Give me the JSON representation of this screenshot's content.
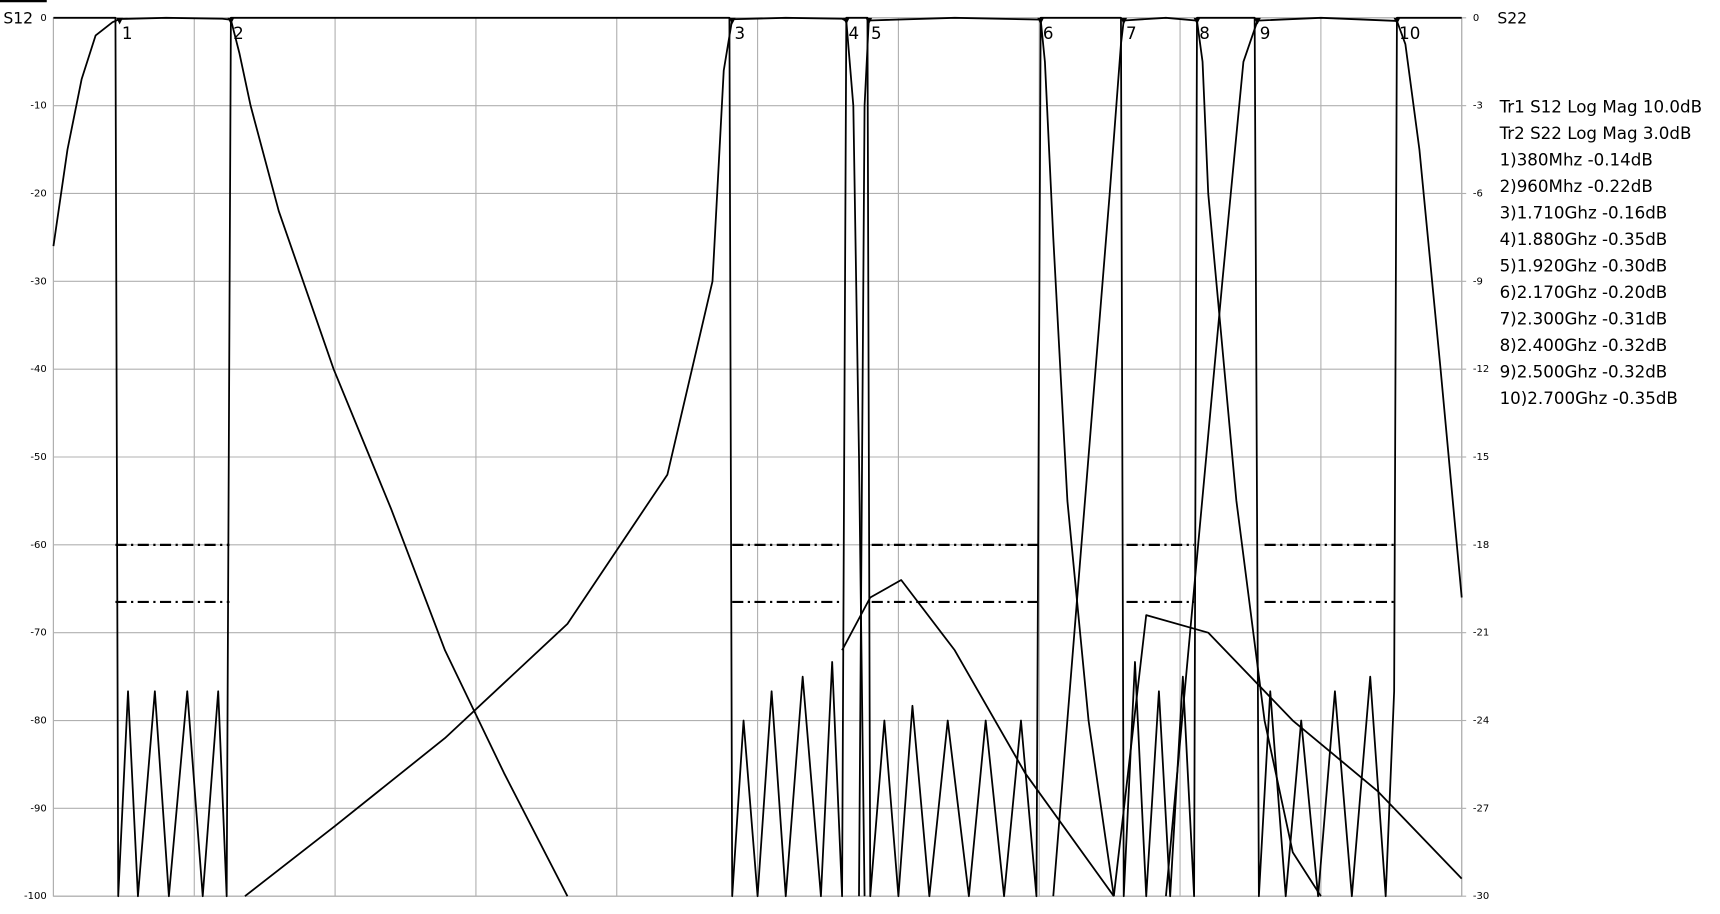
{
  "chart_data": {
    "type": "line",
    "y_label": "S12",
    "y2_label": "S22",
    "annotations": [
      "Tr1 S12 Log Mag 10.0dB",
      "Tr2 S22 Log Mag 3.0dB",
      "1)380Mhz -0.14dB",
      "2)960Mhz -0.22dB",
      "3)1.710Ghz -0.16dB",
      "4)1.880Ghz -0.35dB",
      "5)1.920Ghz -0.30dB",
      "6)2.170Ghz -0.20dB",
      "7)2.300Ghz -0.31dB",
      "8)2.400Ghz -0.32dB",
      "9)2.500Ghz -0.32dB",
      "10)2.700Ghz -0.35dB"
    ],
    "markers": [
      {
        "label": "1",
        "x": 0.47
      },
      {
        "label": "2",
        "x": 1.26
      },
      {
        "label": "3",
        "x": 4.82
      },
      {
        "label": "4",
        "x": 5.63
      },
      {
        "label": "5",
        "x": 5.79
      },
      {
        "label": "6",
        "x": 7.01
      },
      {
        "label": "7",
        "x": 7.6
      },
      {
        "label": "8",
        "x": 8.12
      },
      {
        "label": "9",
        "x": 8.55
      },
      {
        "label": "10",
        "x": 9.54
      }
    ],
    "xlim": [
      0,
      10
    ],
    "ylim": [
      -100,
      0
    ],
    "yticks": [
      0,
      -10,
      -20,
      -30,
      -40,
      -50,
      -60,
      -70,
      -80,
      -90,
      -100
    ],
    "y2lim": [
      -30,
      0
    ],
    "y2ticks": [
      0,
      -3,
      -6,
      -9,
      -12,
      -15,
      -18,
      -21,
      -24,
      -27,
      -30
    ],
    "grid": true,
    "series": [
      {
        "axis": "y",
        "color": "#000000",
        "x": [
          0,
          0.1,
          0.2,
          0.3,
          0.42,
          0.47,
          0.8,
          1.2,
          1.26,
          1.32,
          1.4,
          1.6,
          1.99,
          2.4,
          2.78,
          3.2,
          3.65
        ],
        "values": [
          -26,
          -15,
          -7,
          -2,
          -0.5,
          -0.14,
          0,
          -0.1,
          -0.22,
          -4,
          -10,
          -22,
          -40,
          -56,
          -72,
          -86,
          -100
        ]
      },
      {
        "axis": "y",
        "color": "#000000",
        "x": [
          1.36,
          2.0,
          2.78,
          3.65,
          4.36,
          4.68,
          4.76,
          4.82,
          5.2,
          5.6,
          5.63,
          5.68,
          5.72,
          5.76
        ],
        "values": [
          -100,
          -92,
          -82,
          -69,
          -52,
          -30,
          -6,
          -0.16,
          0,
          -0.1,
          -0.35,
          -10,
          -50,
          -100
        ]
      },
      {
        "axis": "y",
        "color": "#000000",
        "x": [
          5.72,
          5.76,
          5.79,
          6.4,
          7.01,
          7.04,
          7.1,
          7.2,
          7.35,
          7.53
        ],
        "values": [
          -100,
          -10,
          -0.3,
          0,
          -0.2,
          -5,
          -25,
          -55,
          -80,
          -100
        ]
      },
      {
        "axis": "y",
        "color": "#000000",
        "x": [
          7.1,
          7.3,
          7.5,
          7.58,
          7.6,
          7.9,
          8.12,
          8.16,
          8.2,
          8.4,
          8.6,
          8.8,
          9.0
        ],
        "values": [
          -100,
          -60,
          -20,
          -3,
          -0.31,
          0,
          -0.32,
          -5,
          -20,
          -55,
          -80,
          -95,
          -100
        ]
      },
      {
        "axis": "y",
        "color": "#000000",
        "x": [
          7.9,
          8.1,
          8.3,
          8.45,
          8.55,
          9.0,
          9.54,
          9.6,
          9.7,
          9.85,
          10
        ],
        "values": [
          -100,
          -65,
          -30,
          -5,
          -0.32,
          0,
          -0.35,
          -3,
          -15,
          -40,
          -66
        ]
      },
      {
        "axis": "y",
        "color": "#000000",
        "x": [
          7.53,
          7.76,
          8.2,
          8.8,
          9.4,
          10
        ],
        "values": [
          -100,
          -68,
          -70,
          -80,
          -88,
          -98
        ]
      },
      {
        "axis": "y",
        "color": "#000000",
        "x": [
          5.6,
          5.8,
          6.02,
          6.4,
          6.9,
          7.53
        ],
        "values": [
          -72,
          -66,
          -64,
          -72,
          -86,
          -100
        ]
      },
      {
        "axis": "y2",
        "color": "#000000",
        "x": [
          0,
          0.44,
          0.46,
          0.53,
          0.6,
          0.72,
          0.82,
          0.95,
          1.06,
          1.17,
          1.23,
          1.26,
          4.8,
          4.82,
          4.9,
          5.0,
          5.1,
          5.2,
          5.32,
          5.45,
          5.53,
          5.6,
          5.63,
          5.78,
          5.8,
          5.9,
          6.0,
          6.1,
          6.22,
          6.35,
          6.5,
          6.62,
          6.75,
          6.87,
          6.98,
          7.01,
          7.58,
          7.6,
          7.68,
          7.76,
          7.85,
          7.93,
          8.02,
          8.1,
          8.12,
          8.53,
          8.56,
          8.64,
          8.75,
          8.86,
          8.98,
          9.1,
          9.22,
          9.35,
          9.46,
          9.52,
          9.54,
          10
        ],
        "values": [
          0,
          0,
          -30,
          -23,
          -30,
          -23,
          -30,
          -23,
          -30,
          -23,
          -30,
          0,
          0,
          -30,
          -24,
          -30,
          -23,
          -30,
          -22.5,
          -30,
          -22,
          -30,
          0,
          0,
          -30,
          -24,
          -30,
          -23.5,
          -30,
          -24,
          -30,
          -24,
          -30,
          -24,
          -30,
          0,
          0,
          -30,
          -22,
          -30,
          -23,
          -30,
          -22.5,
          -30,
          0,
          0,
          -30,
          -23,
          -30,
          -24,
          -30,
          -23,
          -30,
          -22.5,
          -30,
          -23,
          0,
          0
        ]
      },
      {
        "axis": "y",
        "color": "#000000",
        "dash": "dashdot",
        "x": [
          0.44,
          1.25,
          null,
          4.82,
          5.6,
          null,
          5.81,
          6.99,
          null,
          7.62,
          8.1,
          null,
          8.6,
          9.52
        ],
        "values": [
          -60,
          -60,
          null,
          -60,
          -60,
          null,
          -60,
          -60,
          null,
          -60,
          -60,
          null,
          -60,
          -60
        ]
      },
      {
        "axis": "y",
        "color": "#000000",
        "dash": "dashdot",
        "x": [
          0.44,
          1.25,
          null,
          4.82,
          5.6,
          null,
          5.81,
          6.99,
          null,
          7.62,
          8.1,
          null,
          8.6,
          9.52
        ],
        "values": [
          -66.5,
          -66.5,
          null,
          -66.5,
          -66.5,
          null,
          -66.5,
          -66.5,
          null,
          -66.5,
          -66.5,
          null,
          -66.5,
          -66.5
        ]
      }
    ]
  }
}
